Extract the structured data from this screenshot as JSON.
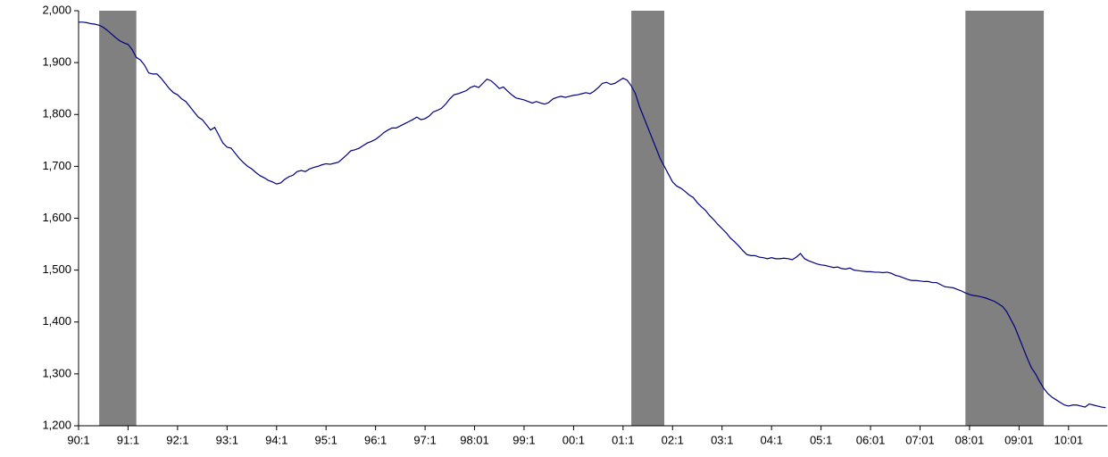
{
  "chart_data": {
    "type": "line",
    "categories": [
      "90:1",
      null,
      null,
      null,
      null,
      null,
      null,
      null,
      null,
      null,
      null,
      null,
      "91:1",
      null,
      null,
      null,
      null,
      null,
      null,
      null,
      null,
      null,
      null,
      null,
      "92:1",
      null,
      null,
      null,
      null,
      null,
      null,
      null,
      null,
      null,
      null,
      null,
      "93:1",
      null,
      null,
      null,
      null,
      null,
      null,
      null,
      null,
      null,
      null,
      null,
      "94:1",
      null,
      null,
      null,
      null,
      null,
      null,
      null,
      null,
      null,
      null,
      null,
      "95:1",
      null,
      null,
      null,
      null,
      null,
      null,
      null,
      null,
      null,
      null,
      null,
      "96:1",
      null,
      null,
      null,
      null,
      null,
      null,
      null,
      null,
      null,
      null,
      null,
      "97:1",
      null,
      null,
      null,
      null,
      null,
      null,
      null,
      null,
      null,
      null,
      null,
      "98:01",
      null,
      null,
      null,
      null,
      null,
      null,
      null,
      null,
      null,
      null,
      null,
      "99:1",
      null,
      null,
      null,
      null,
      null,
      null,
      null,
      null,
      null,
      null,
      null,
      "00:1",
      null,
      null,
      null,
      null,
      null,
      null,
      null,
      null,
      null,
      null,
      null,
      "01:1",
      null,
      null,
      null,
      null,
      null,
      null,
      null,
      null,
      null,
      null,
      null,
      "02:1",
      null,
      null,
      null,
      null,
      null,
      null,
      null,
      null,
      null,
      null,
      null,
      "03:1",
      null,
      null,
      null,
      null,
      null,
      null,
      null,
      null,
      null,
      null,
      null,
      "04:1",
      null,
      null,
      null,
      null,
      null,
      null,
      null,
      null,
      null,
      null,
      null,
      "05:1",
      null,
      null,
      null,
      null,
      null,
      null,
      null,
      null,
      null,
      null,
      null,
      "06:01",
      null,
      null,
      null,
      null,
      null,
      null,
      null,
      null,
      null,
      null,
      null,
      "07:01",
      null,
      null,
      null,
      null,
      null,
      null,
      null,
      null,
      null,
      null,
      null,
      "08:01",
      null,
      null,
      null,
      null,
      null,
      null,
      null,
      null,
      null,
      null,
      null,
      "09:01",
      null,
      null,
      null,
      null,
      null,
      null,
      null,
      null,
      null,
      null,
      null,
      "10:01",
      null,
      null,
      null,
      null,
      null,
      null,
      null,
      null,
      null
    ],
    "series": [
      {
        "color": "#000080",
        "values": [
          1978,
          1978,
          1977,
          1975,
          1974,
          1972,
          1968,
          1962,
          1955,
          1948,
          1942,
          1938,
          1935,
          1925,
          1910,
          1905,
          1895,
          1880,
          1878,
          1878,
          1870,
          1860,
          1850,
          1842,
          1838,
          1830,
          1825,
          1815,
          1805,
          1795,
          1790,
          1780,
          1770,
          1775,
          1760,
          1745,
          1737,
          1735,
          1725,
          1715,
          1707,
          1700,
          1695,
          1688,
          1682,
          1678,
          1673,
          1670,
          1666,
          1668,
          1675,
          1680,
          1683,
          1690,
          1692,
          1690,
          1695,
          1698,
          1700,
          1703,
          1705,
          1704,
          1706,
          1708,
          1715,
          1722,
          1730,
          1732,
          1735,
          1740,
          1745,
          1748,
          1752,
          1758,
          1765,
          1770,
          1774,
          1774,
          1778,
          1782,
          1786,
          1790,
          1795,
          1790,
          1792,
          1797,
          1805,
          1808,
          1812,
          1820,
          1830,
          1838,
          1840,
          1843,
          1846,
          1852,
          1855,
          1852,
          1860,
          1868,
          1865,
          1858,
          1850,
          1853,
          1845,
          1838,
          1832,
          1830,
          1828,
          1825,
          1822,
          1825,
          1822,
          1820,
          1823,
          1830,
          1833,
          1835,
          1833,
          1835,
          1837,
          1838,
          1840,
          1842,
          1840,
          1845,
          1852,
          1860,
          1862,
          1858,
          1860,
          1865,
          1870,
          1866,
          1855,
          1840,
          1815,
          1795,
          1775,
          1755,
          1735,
          1715,
          1700,
          1685,
          1670,
          1662,
          1658,
          1652,
          1645,
          1640,
          1630,
          1622,
          1615,
          1605,
          1597,
          1588,
          1580,
          1572,
          1562,
          1555,
          1547,
          1538,
          1530,
          1528,
          1528,
          1525,
          1524,
          1522,
          1524,
          1522,
          1522,
          1523,
          1522,
          1520,
          1525,
          1532,
          1522,
          1518,
          1515,
          1512,
          1510,
          1509,
          1507,
          1505,
          1506,
          1503,
          1502,
          1504,
          1500,
          1499,
          1498,
          1497,
          1497,
          1496,
          1496,
          1495,
          1496,
          1494,
          1490,
          1488,
          1485,
          1482,
          1480,
          1480,
          1479,
          1478,
          1478,
          1476,
          1476,
          1472,
          1468,
          1467,
          1466,
          1463,
          1460,
          1456,
          1453,
          1451,
          1450,
          1448,
          1446,
          1443,
          1440,
          1435,
          1430,
          1420,
          1405,
          1390,
          1370,
          1350,
          1330,
          1312,
          1300,
          1285,
          1272,
          1262,
          1255,
          1250,
          1245,
          1240,
          1238,
          1240,
          1240,
          1238,
          1236,
          1242,
          1240,
          1238,
          1236,
          1235
        ]
      }
    ],
    "shaded": [
      {
        "from": 5,
        "to": 14
      },
      {
        "from": 134,
        "to": 142
      },
      {
        "from": 215,
        "to": 234
      }
    ],
    "shade_color": "#808080",
    "ylim": [
      1200,
      2000
    ],
    "yticks": [
      {
        "value": 1200,
        "label": "1,200"
      },
      {
        "value": 1300,
        "label": "1,300"
      },
      {
        "value": 1400,
        "label": "1,400"
      },
      {
        "value": 1500,
        "label": "1,500"
      },
      {
        "value": 1600,
        "label": "1,600"
      },
      {
        "value": 1700,
        "label": "1,700"
      },
      {
        "value": 1800,
        "label": "1,800"
      },
      {
        "value": 1900,
        "label": "1,900"
      },
      {
        "value": 2000,
        "label": "2,000"
      }
    ],
    "grid": false
  }
}
